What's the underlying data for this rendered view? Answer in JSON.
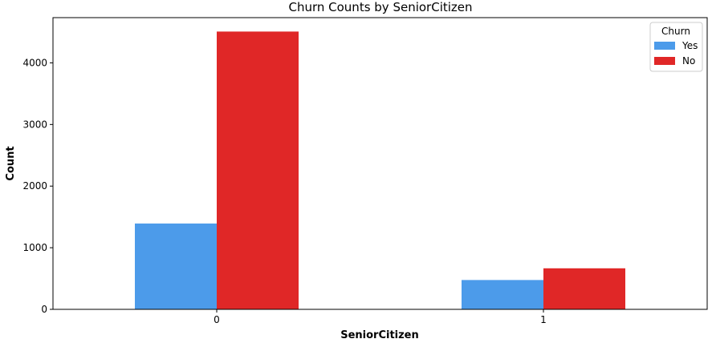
{
  "chart_data": {
    "type": "bar",
    "title": "Churn Counts by SeniorCitizen",
    "xlabel": "SeniorCitizen",
    "ylabel": "Count",
    "categories": [
      "0",
      "1"
    ],
    "series": [
      {
        "name": "Yes",
        "values": [
          1393,
          476
        ],
        "color": "#4c9bea"
      },
      {
        "name": "No",
        "values": [
          4508,
          666
        ],
        "color": "#e02727"
      }
    ],
    "ylim": [
      0,
      4734
    ],
    "yticks": [
      0,
      1000,
      2000,
      3000,
      4000
    ],
    "legend": {
      "title": "Churn",
      "placement": "top-right"
    },
    "grid": false
  }
}
